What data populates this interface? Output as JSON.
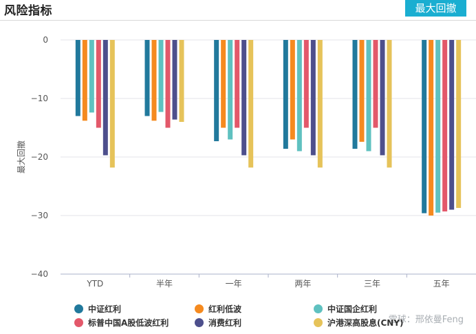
{
  "header": {
    "title": "风险指标",
    "button_label": "最大回撤"
  },
  "watermark": "雪球：邢依曼Feng",
  "chart_data": {
    "type": "bar",
    "title": "",
    "xlabel": "",
    "ylabel": "最大回撤",
    "ylim": [
      -40,
      0
    ],
    "yticks": [
      0,
      -10,
      -20,
      -30,
      -40
    ],
    "grid": true,
    "legend_position": "bottom",
    "categories": [
      "YTD",
      "半年",
      "一年",
      "两年",
      "三年",
      "五年"
    ],
    "series": [
      {
        "name": "中证红利",
        "color": "#21799c",
        "values": [
          -13.0,
          -13.0,
          -17.3,
          -18.6,
          -18.6,
          -29.6
        ]
      },
      {
        "name": "红利低波",
        "color": "#f58a1f",
        "values": [
          -13.8,
          -13.8,
          -15.0,
          -17.0,
          -17.4,
          -30.0
        ]
      },
      {
        "name": "中证国企红利",
        "color": "#5fc1c0",
        "values": [
          -12.4,
          -12.3,
          -17.0,
          -19.0,
          -19.0,
          -29.5
        ]
      },
      {
        "name": "标普中国A股低波红利",
        "color": "#e3586a",
        "values": [
          -15.0,
          -15.0,
          -15.0,
          -15.0,
          -15.0,
          -29.3
        ]
      },
      {
        "name": "消费红利",
        "color": "#4d4f8c",
        "values": [
          -19.7,
          -13.6,
          -19.7,
          -19.7,
          -19.7,
          -29.0
        ]
      },
      {
        "name": "沪港深高股息(CNY)",
        "color": "#e6c35a",
        "values": [
          -21.8,
          -14.0,
          -21.8,
          -21.8,
          -21.8,
          -28.7
        ]
      }
    ]
  }
}
